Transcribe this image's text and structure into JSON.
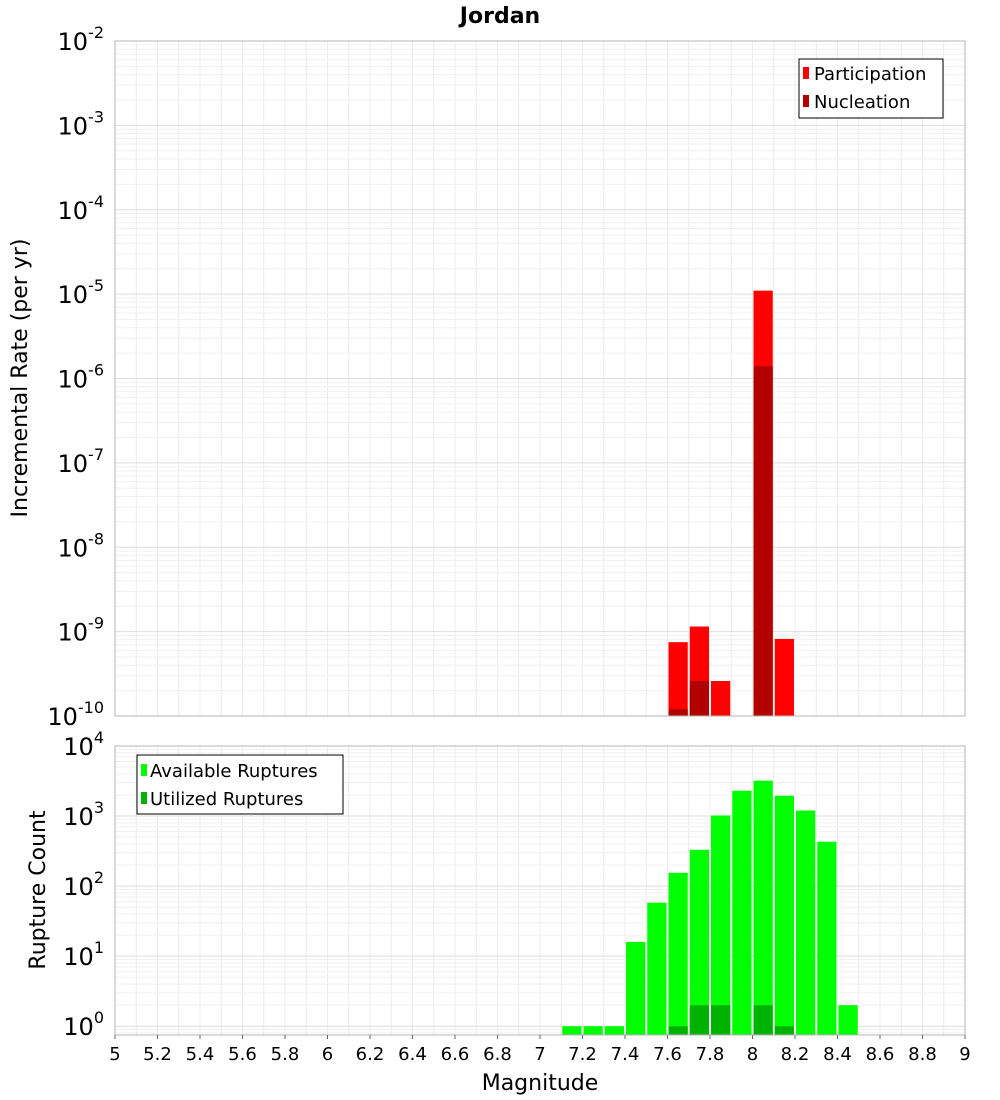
{
  "chart_data": [
    {
      "type": "bar",
      "title": "Jordan",
      "xlabel": "",
      "ylabel": "Incremental Rate (per yr)",
      "yscale": "log",
      "ylim": [
        1e-10,
        0.01
      ],
      "xlim": [
        5,
        9
      ],
      "grid": true,
      "legend_position": "top-right",
      "bin_width": 0.1,
      "y_ticks": [
        {
          "base": "10",
          "exp": "-2"
        },
        {
          "base": "10",
          "exp": "-3"
        },
        {
          "base": "10",
          "exp": "-4"
        },
        {
          "base": "10",
          "exp": "-5"
        },
        {
          "base": "10",
          "exp": "-6"
        },
        {
          "base": "10",
          "exp": "-7"
        },
        {
          "base": "10",
          "exp": "-8"
        },
        {
          "base": "10",
          "exp": "-9"
        },
        {
          "base": "10",
          "exp": "-10"
        }
      ],
      "series": [
        {
          "name": "Participation",
          "color": "#ff0000",
          "x": [
            7.65,
            7.75,
            7.85,
            8.05,
            8.15
          ],
          "values": [
            7.5e-10,
            1.15e-09,
            2.6e-10,
            1.1e-05,
            8.2e-10
          ]
        },
        {
          "name": "Nucleation",
          "color": "#b20000",
          "x": [
            7.65,
            7.75,
            8.05
          ],
          "values": [
            1.2e-10,
            2.6e-10,
            1.4e-06
          ]
        }
      ]
    },
    {
      "type": "bar",
      "title": "",
      "xlabel": "Magnitude",
      "ylabel": "Rupture Count",
      "yscale": "log",
      "ylim": [
        0.75,
        10000
      ],
      "xlim": [
        5,
        9
      ],
      "grid": true,
      "legend_position": "top-left",
      "bin_width": 0.1,
      "x_ticks": [
        "5",
        "5.2",
        "5.4",
        "5.6",
        "5.8",
        "6",
        "6.2",
        "6.4",
        "6.6",
        "6.8",
        "7",
        "7.2",
        "7.4",
        "7.6",
        "7.8",
        "8",
        "8.2",
        "8.4",
        "8.6",
        "8.8",
        "9"
      ],
      "y_ticks": [
        {
          "base": "10",
          "exp": "4"
        },
        {
          "base": "10",
          "exp": "3"
        },
        {
          "base": "10",
          "exp": "2"
        },
        {
          "base": "10",
          "exp": "1"
        },
        {
          "base": "10",
          "exp": "0"
        }
      ],
      "series": [
        {
          "name": "Available Ruptures",
          "color": "#00ff00",
          "x": [
            7.15,
            7.25,
            7.35,
            7.45,
            7.55,
            7.65,
            7.75,
            7.85,
            7.95,
            8.05,
            8.15,
            8.25,
            8.35,
            8.45
          ],
          "values": [
            1,
            1,
            1,
            16,
            58,
            155,
            330,
            1020,
            2300,
            3200,
            1950,
            1200,
            430,
            2
          ]
        },
        {
          "name": "Utilized Ruptures",
          "color": "#00b200",
          "x": [
            7.65,
            7.75,
            7.85,
            8.05,
            8.15
          ],
          "values": [
            1,
            2,
            2,
            2,
            1
          ]
        }
      ]
    }
  ]
}
